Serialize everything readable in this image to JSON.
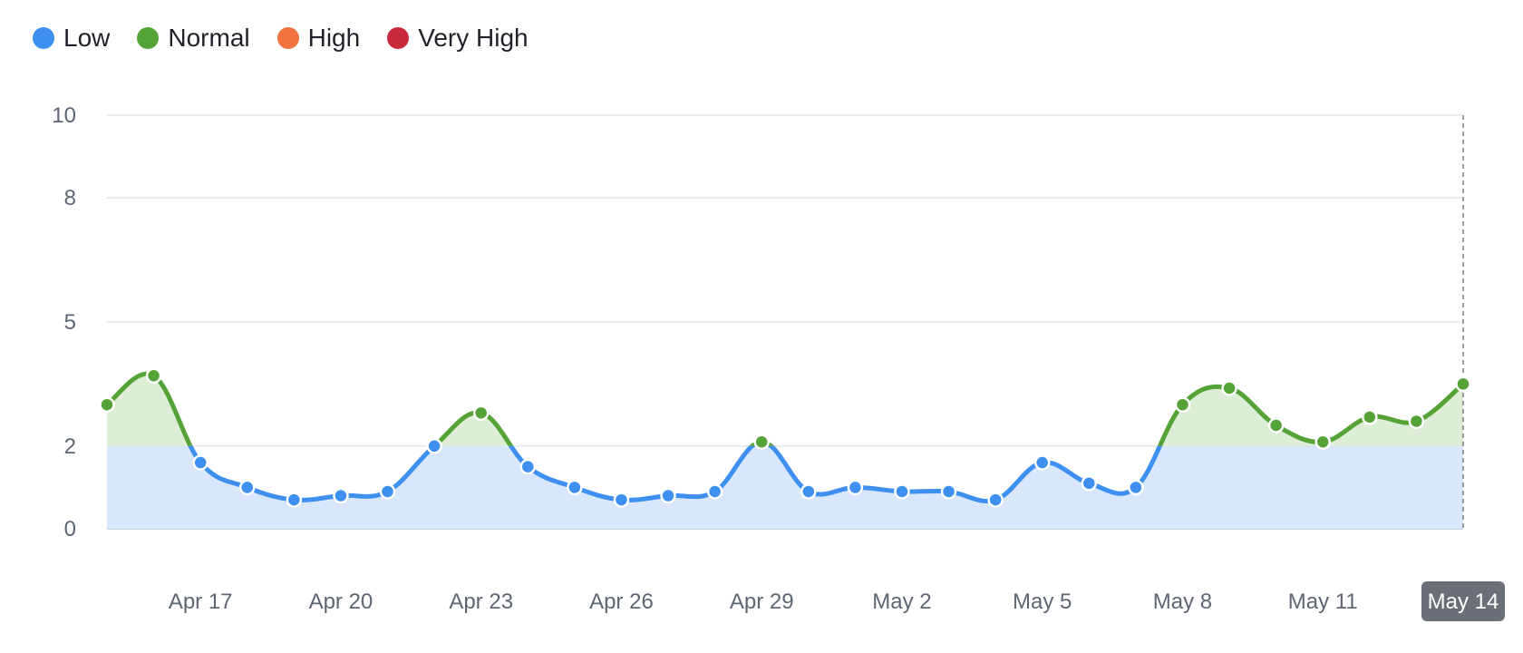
{
  "legend": [
    {
      "label": "Low",
      "color": "#3d8ff0"
    },
    {
      "label": "Normal",
      "color": "#55a236"
    },
    {
      "label": "High",
      "color": "#f07340"
    },
    {
      "label": "Very High",
      "color": "#c8283b"
    }
  ],
  "chart_data": {
    "type": "area",
    "title": "",
    "xlabel": "",
    "ylabel": "",
    "ylim": [
      0,
      10
    ],
    "y_ticks": [
      0,
      2,
      5,
      8,
      10
    ],
    "x": [
      "Apr 15",
      "Apr 16",
      "Apr 17",
      "Apr 18",
      "Apr 19",
      "Apr 20",
      "Apr 21",
      "Apr 22",
      "Apr 23",
      "Apr 24",
      "Apr 25",
      "Apr 26",
      "Apr 27",
      "Apr 28",
      "Apr 29",
      "Apr 30",
      "May 1",
      "May 2",
      "May 3",
      "May 4",
      "May 5",
      "May 6",
      "May 7",
      "May 8",
      "May 9",
      "May 10",
      "May 11",
      "May 12",
      "May 13",
      "May 14"
    ],
    "x_tick_labels": [
      "Apr 17",
      "Apr 20",
      "Apr 23",
      "Apr 26",
      "Apr 29",
      "May 2",
      "May 5",
      "May 8",
      "May 11",
      "May 14"
    ],
    "values": [
      3.0,
      3.7,
      1.6,
      1.0,
      0.7,
      0.8,
      0.9,
      2.0,
      2.8,
      1.5,
      1.0,
      0.7,
      0.8,
      0.9,
      2.1,
      0.9,
      1.0,
      0.9,
      0.9,
      0.7,
      1.6,
      1.1,
      1.0,
      3.0,
      3.4,
      2.5,
      2.1,
      2.7,
      2.6,
      3.5
    ],
    "series": [
      {
        "name": "Low",
        "color": "#3d8ff0",
        "fill": "#d8e7fc",
        "range": [
          0,
          2
        ]
      },
      {
        "name": "Normal",
        "color": "#55a236",
        "fill": "#deedd6",
        "range": [
          2,
          5
        ]
      }
    ],
    "grid": true,
    "legend_position": "top-left",
    "highlighted_x": "May 14"
  }
}
